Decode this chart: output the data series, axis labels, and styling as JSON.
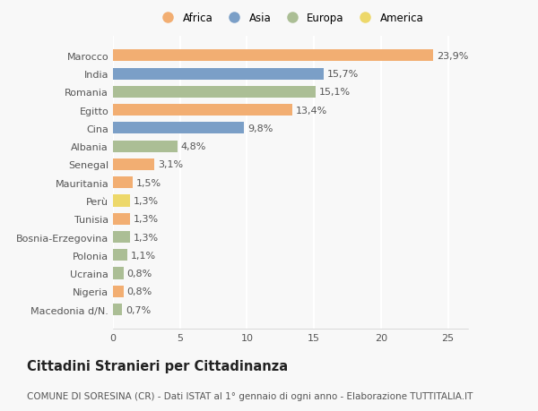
{
  "countries": [
    "Marocco",
    "India",
    "Romania",
    "Egitto",
    "Cina",
    "Albania",
    "Senegal",
    "Mauritania",
    "Perù",
    "Tunisia",
    "Bosnia-Erzegovina",
    "Polonia",
    "Ucraina",
    "Nigeria",
    "Macedonia d/N."
  ],
  "values": [
    23.9,
    15.7,
    15.1,
    13.4,
    9.8,
    4.8,
    3.1,
    1.5,
    1.3,
    1.3,
    1.3,
    1.1,
    0.8,
    0.8,
    0.7
  ],
  "labels": [
    "23,9%",
    "15,7%",
    "15,1%",
    "13,4%",
    "9,8%",
    "4,8%",
    "3,1%",
    "1,5%",
    "1,3%",
    "1,3%",
    "1,3%",
    "1,1%",
    "0,8%",
    "0,8%",
    "0,7%"
  ],
  "continents": [
    "Africa",
    "Asia",
    "Europa",
    "Africa",
    "Asia",
    "Europa",
    "Africa",
    "Africa",
    "America",
    "Africa",
    "Europa",
    "Europa",
    "Europa",
    "Africa",
    "Europa"
  ],
  "colors": {
    "Africa": "#F2AE72",
    "Asia": "#7B9FC7",
    "Europa": "#ABBE95",
    "America": "#EDD86A"
  },
  "legend_order": [
    "Africa",
    "Asia",
    "Europa",
    "America"
  ],
  "title": "Cittadini Stranieri per Cittadinanza",
  "subtitle": "COMUNE DI SORESINA (CR) - Dati ISTAT al 1° gennaio di ogni anno - Elaborazione TUTTITALIA.IT",
  "xlim": [
    0,
    26.5
  ],
  "xticks": [
    0,
    5,
    10,
    15,
    20,
    25
  ],
  "background_color": "#f8f8f8",
  "bar_height": 0.65,
  "grid_color": "#ffffff",
  "label_fontsize": 8.0,
  "tick_fontsize": 8.0,
  "title_fontsize": 10.5,
  "subtitle_fontsize": 7.5
}
